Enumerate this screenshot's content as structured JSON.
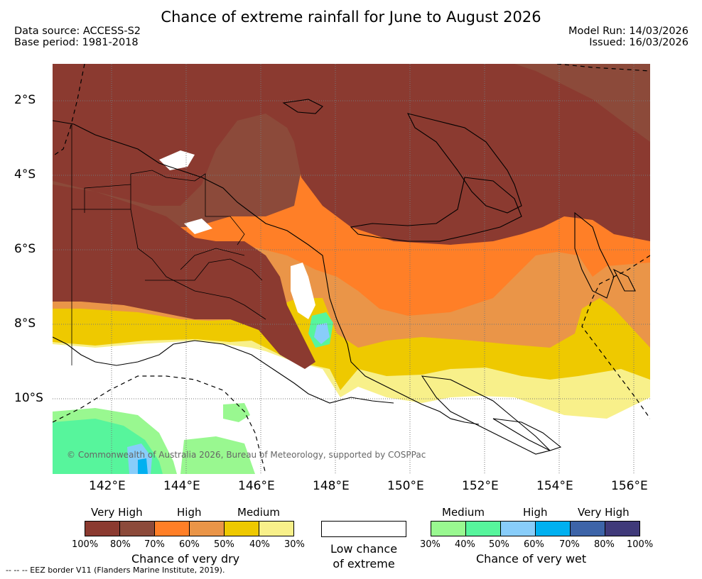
{
  "title": "Chance of extreme rainfall for June to August 2026",
  "meta": {
    "data_source": "Data source: ACCESS-S2",
    "base_period": "Base period: 1981-2018",
    "model_run": "Model Run: 14/03/2026",
    "issued": "Issued: 16/03/2026"
  },
  "map": {
    "copyright": "© Commonwealth of Australia 2026, Bureau of Meteorology, supported by COSPPac",
    "lat_labels": [
      "2°S",
      "4°S",
      "6°S",
      "8°S",
      "10°S"
    ],
    "lon_labels": [
      "142°E",
      "144°E",
      "146°E",
      "148°E",
      "150°E",
      "152°E",
      "154°E",
      "156°E"
    ],
    "colors": {
      "dry_very_high_100": "#8b3a30",
      "dry_very_high_80": "#8c4a3a",
      "dry_high_70": "#ff7f27",
      "dry_high_60": "#ea9548",
      "dry_medium_50": "#eec900",
      "dry_medium_40": "#f8f08a",
      "wet_medium_30": "#99f890",
      "wet_medium_40": "#57f59c",
      "wet_high_50": "#88cdfa",
      "wet_high_60": "#00b0f0",
      "wet_very_high_70": "#3d64a8",
      "wet_very_high_80": "#403a7a"
    }
  },
  "legend": {
    "dry": {
      "headers": [
        "Very High",
        "High",
        "Medium"
      ],
      "ticks": [
        "100%",
        "80%",
        "70%",
        "60%",
        "50%",
        "40%",
        "30%"
      ],
      "label": "Chance of very dry",
      "swatches": [
        "#8b3a30",
        "#8c4a3a",
        "#ff7f27",
        "#ea9548",
        "#eec900",
        "#f8f08a"
      ]
    },
    "low": {
      "label_line1": "Low chance",
      "label_line2": "of extreme"
    },
    "wet": {
      "headers": [
        "Medium",
        "High",
        "Very High"
      ],
      "ticks": [
        "30%",
        "40%",
        "50%",
        "60%",
        "70%",
        "80%",
        "100%"
      ],
      "label": "Chance of very wet",
      "swatches": [
        "#99f890",
        "#57f59c",
        "#88cdfa",
        "#00b0f0",
        "#3d64a8",
        "#403a7a"
      ]
    }
  },
  "footnote": "-- -- -- EEZ border V11 (Flanders Marine Institute, 2019)."
}
